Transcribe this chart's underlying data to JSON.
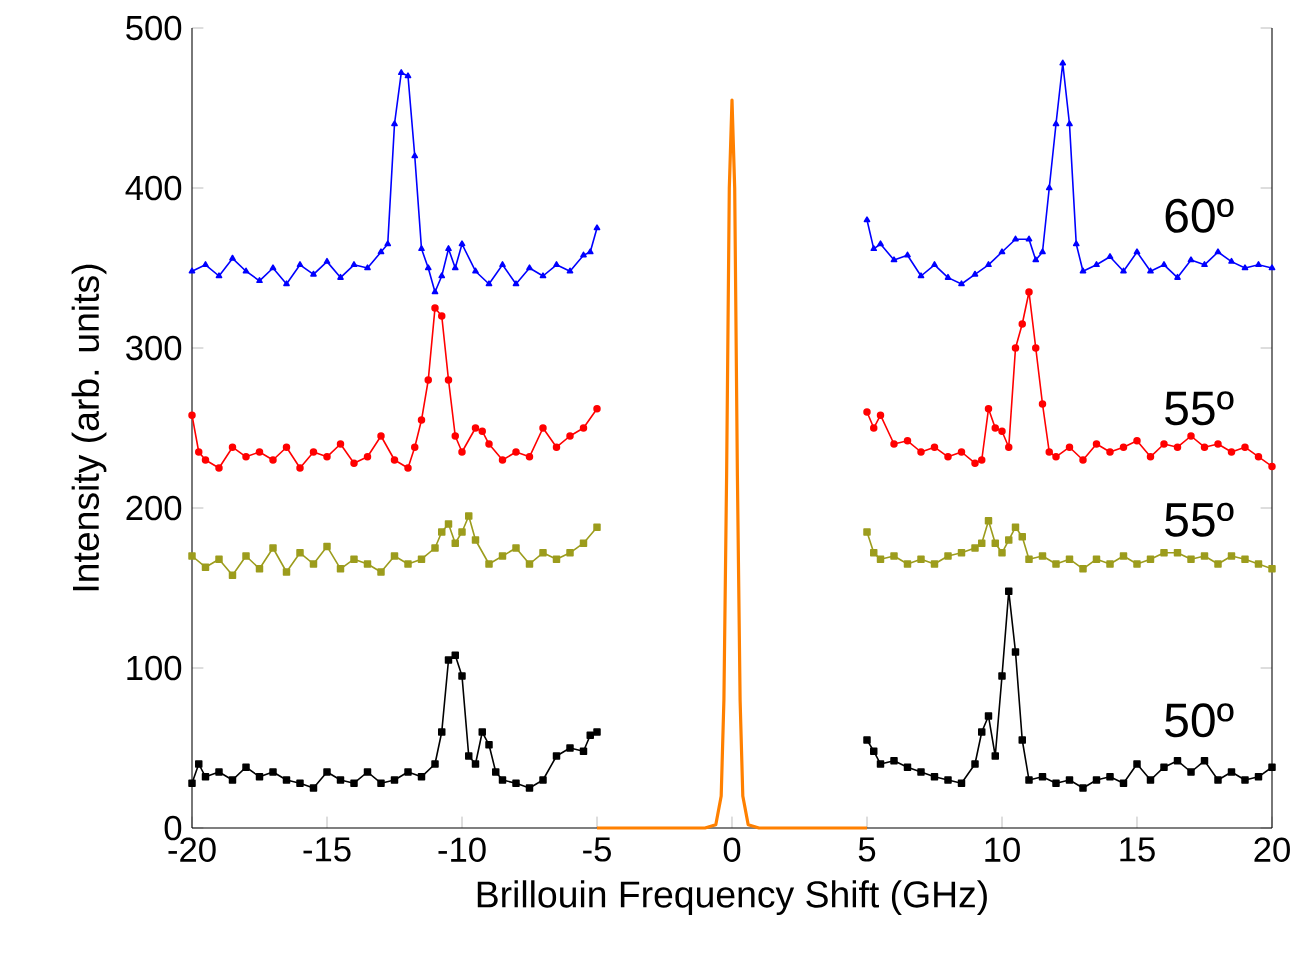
{
  "chart_data": {
    "type": "line",
    "xlabel": "Brillouin Frequency Shift (GHz)",
    "ylabel": "Intensity (arb. units)",
    "xlim": [
      -20,
      20
    ],
    "ylim": [
      0,
      500
    ],
    "xticks": [
      -20,
      -15,
      -10,
      -5,
      0,
      5,
      10,
      15,
      20
    ],
    "yticks": [
      0,
      100,
      200,
      300,
      400,
      500
    ],
    "grid": false,
    "legend": false,
    "line_style": "solid",
    "series": [
      {
        "name": "60º",
        "color": "#0000ff",
        "marker": "triangle",
        "x": [
          -20,
          -19.5,
          -19,
          -18.5,
          -18,
          -17.5,
          -17,
          -16.5,
          -16,
          -15.5,
          -15,
          -14.5,
          -14,
          -13.5,
          -13,
          -12.75,
          -12.5,
          -12.25,
          -12,
          -11.75,
          -11.5,
          -11.25,
          -11,
          -10.75,
          -10.5,
          -10.25,
          -10,
          -9.5,
          -9,
          -8.5,
          -8,
          -7.5,
          -7,
          -6.5,
          -6,
          -5.5,
          -5.25,
          -5,
          0,
          5,
          5.25,
          5.5,
          6,
          6.5,
          7,
          7.5,
          8,
          8.5,
          9,
          9.5,
          10,
          10.5,
          11,
          11.25,
          11.5,
          11.75,
          12,
          12.25,
          12.5,
          12.75,
          13,
          13.5,
          14,
          14.5,
          15,
          15.5,
          16,
          16.5,
          17,
          17.5,
          18,
          18.5,
          19,
          19.5,
          20
        ],
        "values": [
          348,
          352,
          345,
          356,
          348,
          342,
          350,
          340,
          352,
          346,
          354,
          344,
          352,
          350,
          360,
          365,
          440,
          472,
          470,
          420,
          362,
          350,
          335,
          345,
          362,
          350,
          365,
          348,
          340,
          352,
          340,
          350,
          345,
          352,
          348,
          358,
          360,
          375,
          null,
          380,
          362,
          365,
          355,
          358,
          345,
          352,
          344,
          340,
          346,
          352,
          360,
          368,
          368,
          355,
          360,
          400,
          440,
          478,
          440,
          365,
          348,
          352,
          357,
          348,
          360,
          348,
          352,
          344,
          355,
          352,
          360,
          354,
          350,
          352,
          350
        ]
      },
      {
        "name": "55º",
        "color": "#ff0000",
        "marker": "circle",
        "x": [
          -20,
          -19.75,
          -19.5,
          -19,
          -18.5,
          -18,
          -17.5,
          -17,
          -16.5,
          -16,
          -15.5,
          -15,
          -14.5,
          -14,
          -13.5,
          -13,
          -12.5,
          -12,
          -11.75,
          -11.5,
          -11.25,
          -11,
          -10.75,
          -10.5,
          -10.25,
          -10,
          -9.5,
          -9.25,
          -9,
          -8.5,
          -8,
          -7.5,
          -7,
          -6.5,
          -6,
          -5.5,
          -5,
          0,
          5,
          5.25,
          5.5,
          6,
          6.5,
          7,
          7.5,
          8,
          8.5,
          9,
          9.25,
          9.5,
          9.75,
          10,
          10.25,
          10.5,
          10.75,
          11,
          11.25,
          11.5,
          11.75,
          12,
          12.5,
          13,
          13.5,
          14,
          14.5,
          15,
          15.5,
          16,
          16.5,
          17,
          17.5,
          18,
          18.5,
          19,
          19.5,
          20
        ],
        "values": [
          258,
          235,
          230,
          225,
          238,
          232,
          235,
          230,
          238,
          225,
          235,
          232,
          240,
          228,
          232,
          245,
          230,
          225,
          238,
          255,
          280,
          325,
          320,
          280,
          245,
          235,
          250,
          248,
          240,
          230,
          235,
          232,
          250,
          238,
          245,
          250,
          262,
          null,
          260,
          250,
          258,
          240,
          242,
          235,
          238,
          232,
          235,
          228,
          230,
          262,
          250,
          248,
          238,
          300,
          315,
          335,
          300,
          265,
          235,
          232,
          238,
          230,
          240,
          235,
          238,
          242,
          232,
          240,
          238,
          245,
          238,
          240,
          235,
          238,
          232,
          226
        ]
      },
      {
        "name": "55º",
        "color": "#9c9c1c",
        "marker": "square",
        "x": [
          -20,
          -19.5,
          -19,
          -18.5,
          -18,
          -17.5,
          -17,
          -16.5,
          -16,
          -15.5,
          -15,
          -14.5,
          -14,
          -13.5,
          -13,
          -12.5,
          -12,
          -11.5,
          -11,
          -10.75,
          -10.5,
          -10.25,
          -10,
          -9.75,
          -9.5,
          -9,
          -8.5,
          -8,
          -7.5,
          -7,
          -6.5,
          -6,
          -5.5,
          -5,
          0,
          5,
          5.25,
          5.5,
          6,
          6.5,
          7,
          7.5,
          8,
          8.5,
          9,
          9.25,
          9.5,
          9.75,
          10,
          10.25,
          10.5,
          10.75,
          11,
          11.5,
          12,
          12.5,
          13,
          13.5,
          14,
          14.5,
          15,
          15.5,
          16,
          16.5,
          17,
          17.5,
          18,
          18.5,
          19,
          19.5,
          20
        ],
        "values": [
          170,
          163,
          168,
          158,
          170,
          162,
          175,
          160,
          172,
          165,
          176,
          162,
          168,
          165,
          160,
          170,
          165,
          168,
          175,
          185,
          190,
          178,
          185,
          195,
          180,
          165,
          170,
          175,
          165,
          172,
          168,
          172,
          178,
          188,
          null,
          185,
          172,
          168,
          170,
          165,
          168,
          165,
          170,
          172,
          175,
          178,
          192,
          178,
          172,
          180,
          188,
          182,
          168,
          170,
          165,
          168,
          162,
          168,
          165,
          170,
          165,
          168,
          172,
          172,
          168,
          170,
          165,
          170,
          168,
          165,
          162
        ]
      },
      {
        "name": "50º",
        "color": "#000000",
        "marker": "square",
        "x": [
          -20,
          -19.75,
          -19.5,
          -19,
          -18.5,
          -18,
          -17.5,
          -17,
          -16.5,
          -16,
          -15.5,
          -15,
          -14.5,
          -14,
          -13.5,
          -13,
          -12.5,
          -12,
          -11.5,
          -11,
          -10.75,
          -10.5,
          -10.25,
          -10,
          -9.75,
          -9.5,
          -9.25,
          -9,
          -8.75,
          -8.5,
          -8,
          -7.5,
          -7,
          -6.5,
          -6,
          -5.5,
          -5.25,
          -5,
          0,
          5,
          5.25,
          5.5,
          6,
          6.5,
          7,
          7.5,
          8,
          8.5,
          9,
          9.25,
          9.5,
          9.75,
          10,
          10.25,
          10.5,
          10.75,
          11,
          11.5,
          12,
          12.5,
          13,
          13.5,
          14,
          14.5,
          15,
          15.5,
          16,
          16.5,
          17,
          17.5,
          18,
          18.5,
          19,
          19.5,
          20
        ],
        "values": [
          28,
          40,
          32,
          35,
          30,
          38,
          32,
          35,
          30,
          28,
          25,
          35,
          30,
          28,
          35,
          28,
          30,
          35,
          32,
          40,
          60,
          105,
          108,
          95,
          45,
          40,
          60,
          52,
          35,
          30,
          28,
          25,
          30,
          45,
          50,
          48,
          58,
          60,
          null,
          55,
          48,
          40,
          42,
          38,
          35,
          32,
          30,
          28,
          40,
          60,
          70,
          45,
          95,
          148,
          110,
          55,
          30,
          32,
          28,
          30,
          25,
          30,
          32,
          28,
          40,
          30,
          38,
          42,
          35,
          42,
          30,
          35,
          30,
          32,
          38
        ]
      },
      {
        "color": "#ff8000",
        "marker": "none",
        "x": [
          -5,
          -1,
          -0.6,
          -0.4,
          -0.3,
          -0.2,
          -0.1,
          0,
          0.1,
          0.2,
          0.3,
          0.4,
          0.6,
          1,
          5
        ],
        "values": [
          0,
          0,
          2,
          20,
          80,
          220,
          400,
          455,
          400,
          220,
          80,
          20,
          2,
          0,
          0
        ]
      }
    ]
  }
}
